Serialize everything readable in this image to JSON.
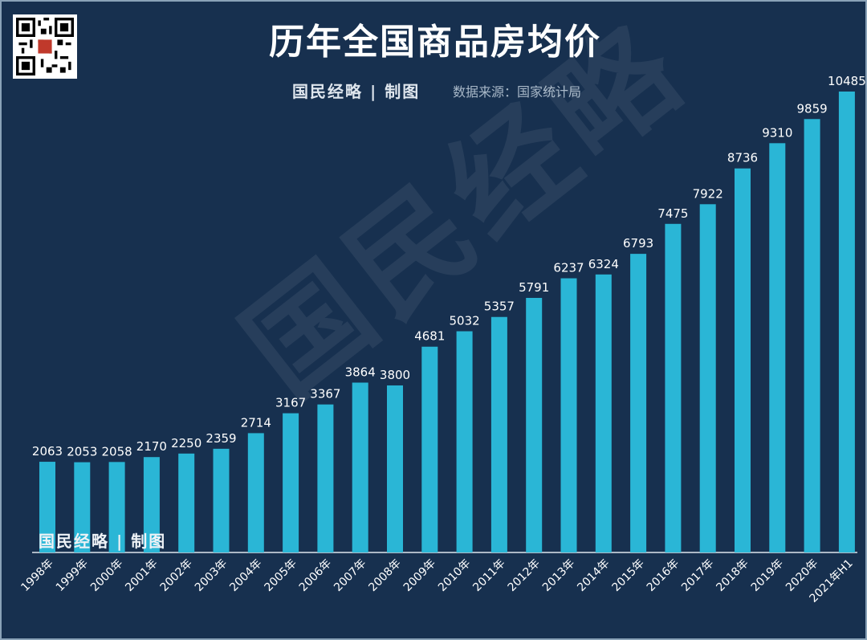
{
  "header": {
    "title": "历年全国商品房均价",
    "credit": "国民经略 | 制图",
    "source": "数据来源：国家统计局"
  },
  "watermark": {
    "text": "国民经略"
  },
  "footer": {
    "credit": "国民经略 | 制图"
  },
  "colors": {
    "background": "#17304f",
    "bar": "#2ab6d6",
    "text": "#ffffff"
  },
  "chart_data": {
    "type": "bar",
    "title": "历年全国商品房均价",
    "categories": [
      "1998年",
      "1999年",
      "2000年",
      "2001年",
      "2002年",
      "2003年",
      "2004年",
      "2005年",
      "2006年",
      "2007年",
      "2008年",
      "2009年",
      "2010年",
      "2011年",
      "2012年",
      "2013年",
      "2014年",
      "2015年",
      "2016年",
      "2017年",
      "2018年",
      "2019年",
      "2020年",
      "2021年H1"
    ],
    "values": [
      2063,
      2053,
      2058,
      2170,
      2250,
      2359,
      2714,
      3167,
      3367,
      3864,
      3800,
      4681,
      5032,
      5357,
      5791,
      6237,
      6324,
      6793,
      7475,
      7922,
      8736,
      9310,
      9859,
      10485
    ],
    "xlabel": "",
    "ylabel": "",
    "ylim": [
      0,
      10485
    ],
    "grid": false,
    "legend": "none"
  }
}
